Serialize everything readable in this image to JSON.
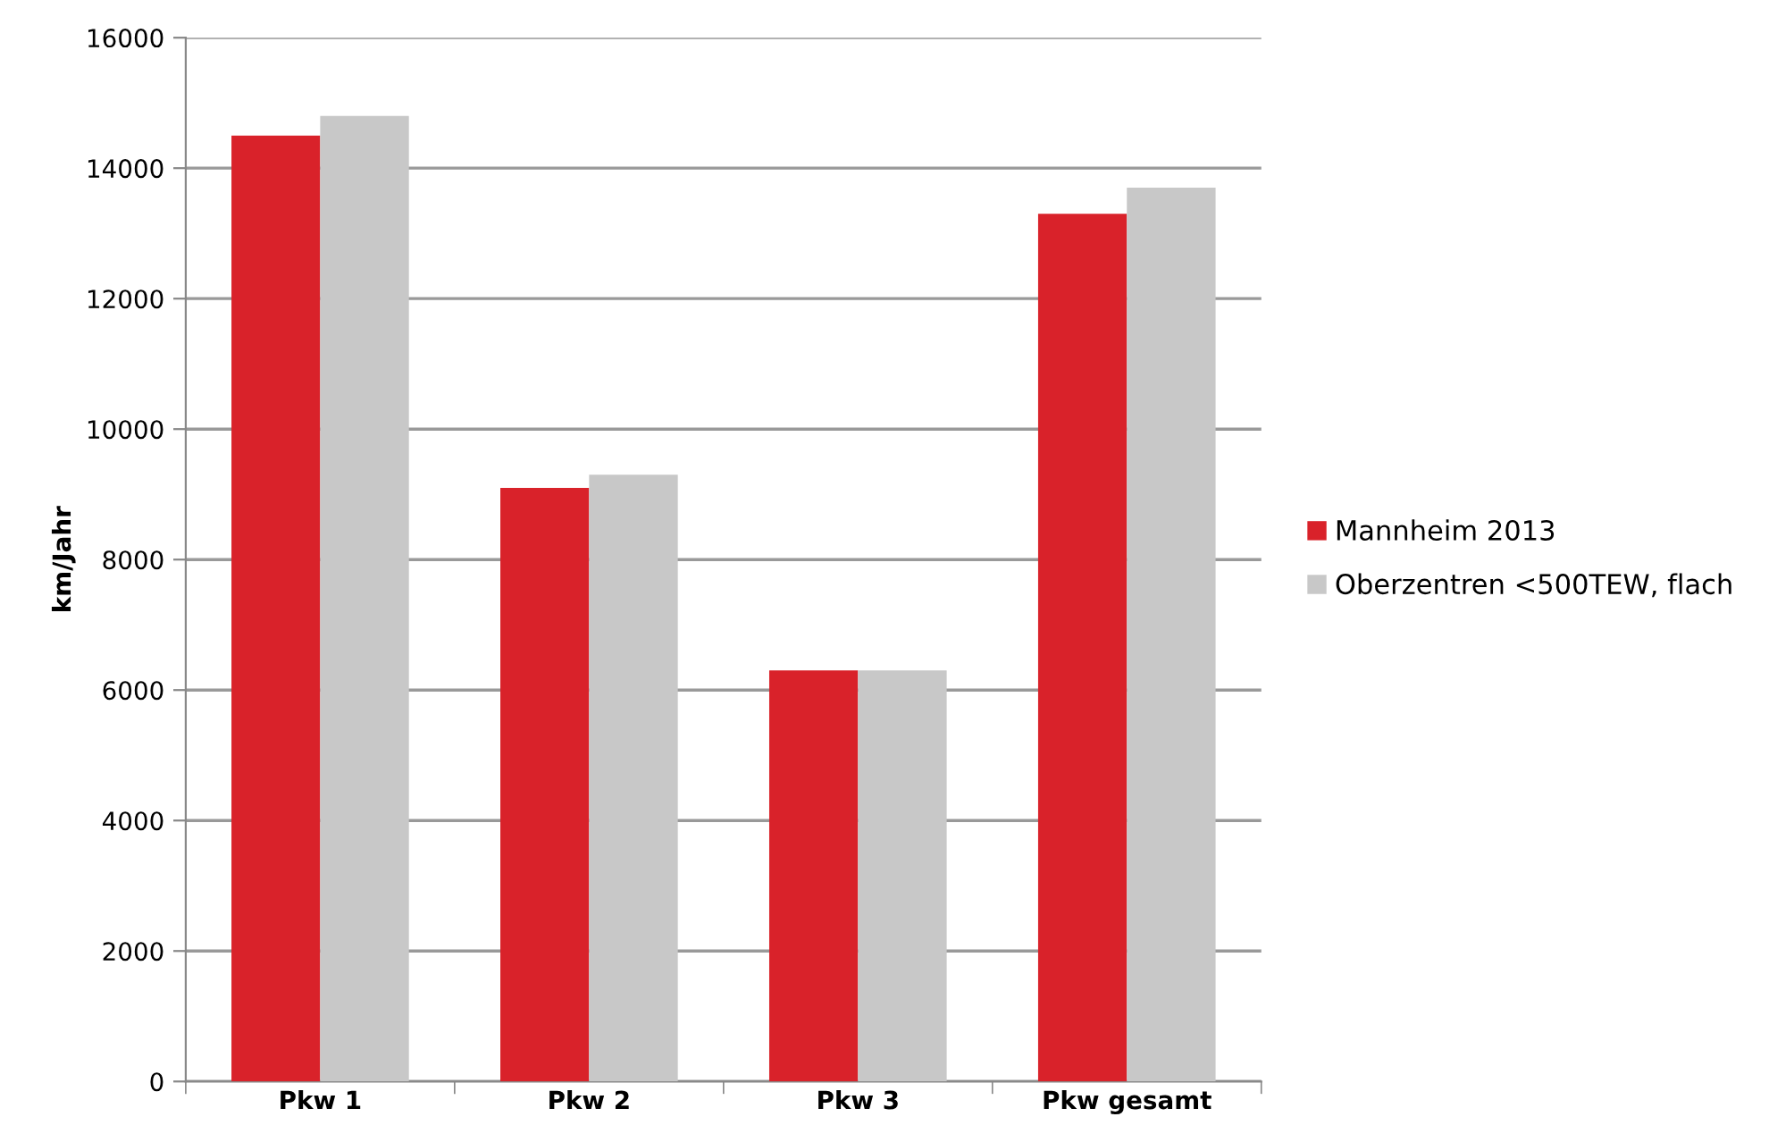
{
  "chart_data": {
    "type": "bar",
    "ylabel": "km/Jahr",
    "categories": [
      "Pkw 1",
      "Pkw 2",
      "Pkw 3",
      "Pkw gesamt"
    ],
    "series": [
      {
        "name": "Mannheim 2013",
        "color": "#d9222a",
        "values": [
          14500,
          9100,
          6300,
          13300
        ]
      },
      {
        "name": "Oberzentren <500TEW, flach",
        "color": "#c8c8c8",
        "values": [
          14800,
          9300,
          6300,
          13700
        ]
      }
    ],
    "ylim": [
      0,
      16000
    ],
    "yticks": [
      0,
      2000,
      4000,
      6000,
      8000,
      10000,
      12000,
      14000,
      16000
    ],
    "grid": "y",
    "legend": "right"
  }
}
